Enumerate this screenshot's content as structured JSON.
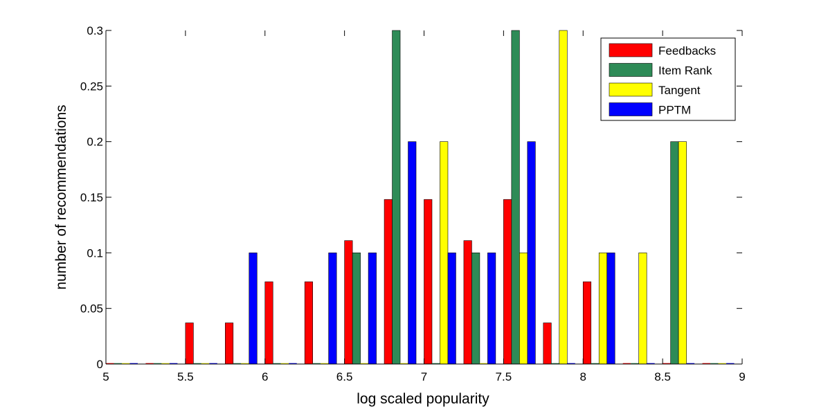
{
  "chart_data": {
    "type": "bar",
    "xlabel": "log scaled popularity",
    "ylabel": "number of recommendations",
    "xlim": [
      5,
      9
    ],
    "ylim": [
      0,
      0.3
    ],
    "xticks": [
      "5",
      "5.5",
      "6",
      "6.5",
      "7",
      "7.5",
      "8",
      "8.5",
      "9"
    ],
    "yticks": [
      "0",
      "0.05",
      "0.1",
      "0.15",
      "0.2",
      "0.25",
      "0.3"
    ],
    "legend_position": "top-right",
    "bin_width": 0.25,
    "series": [
      {
        "name": "Feedbacks",
        "color": "#ff0000",
        "x": [
          5.1,
          5.35,
          5.6,
          5.85,
          6.1,
          6.35,
          6.6,
          6.85,
          7.1,
          7.35,
          7.6,
          7.85,
          8.1,
          8.35,
          8.6,
          8.85
        ],
        "values": [
          0,
          0,
          0.037,
          0.037,
          0.074,
          0.074,
          0.111,
          0.148,
          0.148,
          0.111,
          0.148,
          0.037,
          0.074,
          0,
          0,
          0
        ]
      },
      {
        "name": "Item Rank",
        "color": "#2e8b57",
        "x": [
          5.1,
          5.35,
          5.6,
          5.85,
          6.1,
          6.35,
          6.6,
          6.85,
          7.1,
          7.35,
          7.6,
          7.85,
          8.1,
          8.35,
          8.6,
          8.85
        ],
        "values": [
          0,
          0,
          0,
          0,
          0,
          0,
          0.1,
          0.3,
          0,
          0.1,
          0.3,
          0,
          0,
          0,
          0.2,
          0
        ]
      },
      {
        "name": "Tangent",
        "color": "#ffff00",
        "x": [
          5.1,
          5.35,
          5.6,
          5.85,
          6.1,
          6.35,
          6.6,
          6.85,
          7.1,
          7.35,
          7.6,
          7.85,
          8.1,
          8.35,
          8.6,
          8.85
        ],
        "values": [
          0,
          0,
          0,
          0,
          0,
          0,
          0,
          0,
          0.2,
          0,
          0.1,
          0.3,
          0.1,
          0.1,
          0.2,
          0
        ]
      },
      {
        "name": "PPTM",
        "color": "#0000ff",
        "x": [
          5.1,
          5.35,
          5.6,
          5.85,
          6.1,
          6.35,
          6.6,
          6.85,
          7.1,
          7.35,
          7.6,
          7.85,
          8.1,
          8.35,
          8.6,
          8.85
        ],
        "values": [
          0,
          0,
          0,
          0.1,
          0,
          0.1,
          0.1,
          0.2,
          0.1,
          0.1,
          0.2,
          0,
          0.1,
          0,
          0,
          0
        ]
      }
    ]
  }
}
